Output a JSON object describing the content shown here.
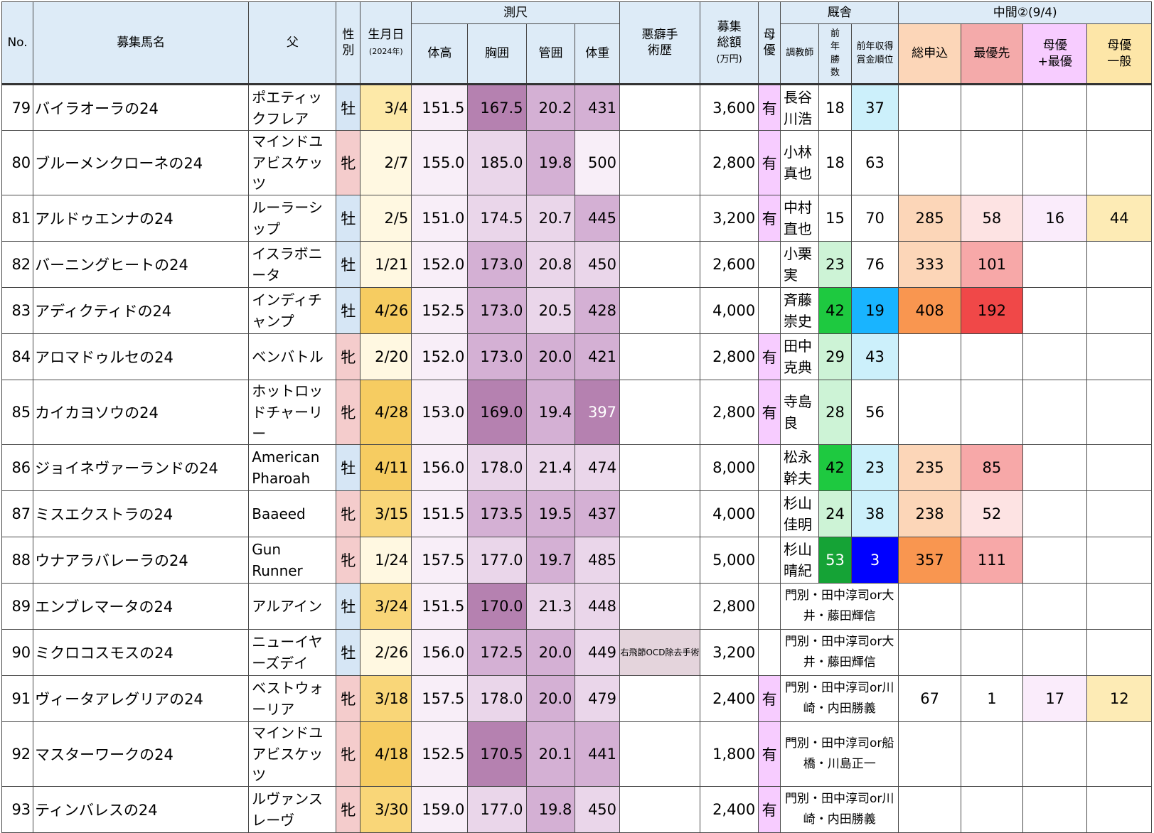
{
  "header": {
    "no": "No.",
    "name": "募集馬名",
    "sire": "父",
    "sex": "性別",
    "birth": "生月日",
    "birth_sub": "(2024年)",
    "measure": "測尺",
    "height": "体高",
    "girth": "胸囲",
    "cannon": "管囲",
    "weight": "体重",
    "vice": "悪癖手術歴",
    "price": "募集総額",
    "price_sub": "(万円)",
    "dam_pref": "母優",
    "stable": "厩舎",
    "trainer": "調教師",
    "wins": "前年勝数",
    "rank": "前年収得賞金順位",
    "interim": "中間②(9/4)",
    "total": "総申込",
    "priority": "最優先",
    "dam_priority": "母優+最優",
    "dam_general": "母優一般"
  },
  "rows": [
    {
      "no": "79",
      "name": "バイラオーラの24",
      "sire": "ポエティックフレア",
      "sex": "牡",
      "birth": "3/4",
      "height": "151.5",
      "girth": "167.5",
      "cannon": "20.2",
      "weight": "431",
      "vice": "",
      "price": "3,600",
      "dam": "有",
      "trainer": "長谷川浩",
      "wins": "18",
      "rank": "37",
      "total": "",
      "priority": "",
      "dam_priority": "",
      "dam_general": ""
    },
    {
      "no": "80",
      "name": "ブルーメンクローネの24",
      "sire": "マインドユアビスケッツ",
      "sex": "牝",
      "birth": "2/7",
      "height": "155.0",
      "girth": "185.0",
      "cannon": "19.8",
      "weight": "500",
      "vice": "",
      "price": "2,800",
      "dam": "有",
      "trainer": "小林真也",
      "wins": "18",
      "rank": "63",
      "total": "",
      "priority": "",
      "dam_priority": "",
      "dam_general": ""
    },
    {
      "no": "81",
      "name": "アルドゥエンナの24",
      "sire": "ルーラーシップ",
      "sex": "牡",
      "birth": "2/5",
      "height": "151.0",
      "girth": "174.5",
      "cannon": "20.7",
      "weight": "445",
      "vice": "",
      "price": "3,200",
      "dam": "有",
      "trainer": "中村直也",
      "wins": "15",
      "rank": "70",
      "total": "285",
      "priority": "58",
      "dam_priority": "16",
      "dam_general": "44"
    },
    {
      "no": "82",
      "name": "バーニングヒートの24",
      "sire": "イスラボニータ",
      "sex": "牡",
      "birth": "1/21",
      "height": "152.0",
      "girth": "173.0",
      "cannon": "20.8",
      "weight": "450",
      "vice": "",
      "price": "2,600",
      "dam": "",
      "trainer": "小栗実",
      "wins": "23",
      "rank": "76",
      "total": "333",
      "priority": "101",
      "dam_priority": "",
      "dam_general": ""
    },
    {
      "no": "83",
      "name": "アディクティドの24",
      "sire": "インディチャンプ",
      "sex": "牡",
      "birth": "4/26",
      "height": "152.5",
      "girth": "173.0",
      "cannon": "20.5",
      "weight": "428",
      "vice": "",
      "price": "4,000",
      "dam": "",
      "trainer": "斉藤崇史",
      "wins": "42",
      "rank": "19",
      "total": "408",
      "priority": "192",
      "dam_priority": "",
      "dam_general": ""
    },
    {
      "no": "84",
      "name": "アロマドゥルセの24",
      "sire": "ベンバトル",
      "sex": "牝",
      "birth": "2/20",
      "height": "152.0",
      "girth": "173.0",
      "cannon": "20.0",
      "weight": "421",
      "vice": "",
      "price": "2,800",
      "dam": "有",
      "trainer": "田中克典",
      "wins": "29",
      "rank": "43",
      "total": "",
      "priority": "",
      "dam_priority": "",
      "dam_general": ""
    },
    {
      "no": "85",
      "name": "カイカヨソウの24",
      "sire": "ホットロッドチャーリー",
      "sex": "牝",
      "birth": "4/28",
      "height": "153.0",
      "girth": "169.0",
      "cannon": "19.4",
      "weight": "397",
      "vice": "",
      "price": "2,800",
      "dam": "有",
      "trainer": "寺島良",
      "wins": "28",
      "rank": "56",
      "total": "",
      "priority": "",
      "dam_priority": "",
      "dam_general": ""
    },
    {
      "no": "86",
      "name": "ジョイネヴァーランドの24",
      "sire": "American Pharoah",
      "sex": "牡",
      "birth": "4/11",
      "height": "156.0",
      "girth": "178.0",
      "cannon": "21.4",
      "weight": "474",
      "vice": "",
      "price": "8,000",
      "dam": "",
      "trainer": "松永幹夫",
      "wins": "42",
      "rank": "23",
      "total": "235",
      "priority": "85",
      "dam_priority": "",
      "dam_general": ""
    },
    {
      "no": "87",
      "name": "ミスエクストラの24",
      "sire": "Baaeed",
      "sex": "牝",
      "birth": "3/15",
      "height": "151.5",
      "girth": "173.5",
      "cannon": "19.5",
      "weight": "437",
      "vice": "",
      "price": "4,000",
      "dam": "",
      "trainer": "杉山佳明",
      "wins": "24",
      "rank": "38",
      "total": "238",
      "priority": "52",
      "dam_priority": "",
      "dam_general": ""
    },
    {
      "no": "88",
      "name": "ウナアラバレーラの24",
      "sire": "Gun Runner",
      "sex": "牝",
      "birth": "1/24",
      "height": "157.5",
      "girth": "177.0",
      "cannon": "19.7",
      "weight": "485",
      "vice": "",
      "price": "5,000",
      "dam": "",
      "trainer": "杉山晴紀",
      "wins": "53",
      "rank": "3",
      "total": "357",
      "priority": "111",
      "dam_priority": "",
      "dam_general": ""
    },
    {
      "no": "89",
      "name": "エンブレマータの24",
      "sire": "アルアイン",
      "sex": "牡",
      "birth": "3/24",
      "height": "151.5",
      "girth": "170.0",
      "cannon": "21.3",
      "weight": "448",
      "vice": "",
      "price": "2,800",
      "dam": "",
      "combined": "門別・田中淳司or大井・藤田輝信",
      "total": "",
      "priority": "",
      "dam_priority": "",
      "dam_general": ""
    },
    {
      "no": "90",
      "name": "ミクロコスモスの24",
      "sire": "ニューイヤーズデイ",
      "sex": "牡",
      "birth": "2/26",
      "height": "156.0",
      "girth": "172.5",
      "cannon": "20.0",
      "weight": "449",
      "vice": "右飛節OCD除去手術",
      "price": "3,200",
      "dam": "",
      "combined": "門別・田中淳司or大井・藤田輝信",
      "total": "",
      "priority": "",
      "dam_priority": "",
      "dam_general": ""
    },
    {
      "no": "91",
      "name": "ヴィータアレグリアの24",
      "sire": "ベストウォーリア",
      "sex": "牝",
      "birth": "3/18",
      "height": "157.5",
      "girth": "178.0",
      "cannon": "20.0",
      "weight": "479",
      "vice": "",
      "price": "2,400",
      "dam": "有",
      "combined": "門別・田中淳司or川崎・内田勝義",
      "total": "67",
      "priority": "1",
      "dam_priority": "17",
      "dam_general": "12"
    },
    {
      "no": "92",
      "name": "マスターワークの24",
      "sire": "マインドユアビスケッツ",
      "sex": "牝",
      "birth": "4/18",
      "height": "152.5",
      "girth": "170.5",
      "cannon": "20.1",
      "weight": "441",
      "vice": "",
      "price": "1,800",
      "dam": "有",
      "combined": "門別・田中淳司or船橋・川島正一",
      "total": "",
      "priority": "",
      "dam_priority": "",
      "dam_general": ""
    },
    {
      "no": "93",
      "name": "ティンバレスの24",
      "sire": "ルヴァンスレーヴ",
      "sex": "牝",
      "birth": "3/30",
      "height": "159.0",
      "girth": "177.0",
      "cannon": "19.8",
      "weight": "450",
      "vice": "",
      "price": "2,400",
      "dam": "有",
      "combined": "門別・田中淳司or川崎・内田勝義",
      "total": "",
      "priority": "",
      "dam_priority": "",
      "dam_general": ""
    }
  ],
  "colors": {
    "sex_male": "#d6e6f5",
    "sex_female": "#f4cccc",
    "dam_yes": "#f7ccff",
    "vice_bg": "#e4d4dc",
    "birth_scale": [
      "#fff8e1",
      "#fde9a8",
      "#f9d678",
      "#f6cc61"
    ],
    "measure_scale": [
      "#f8eef8",
      "#ead6ea",
      "#d4b0d4",
      "#b581b0"
    ],
    "wins_scale": [
      "#ffffff",
      "#cdf3d6",
      "#1ec940",
      "#15a336"
    ],
    "rank_scale": [
      "#ffffff",
      "#ccf0fb",
      "#19b4ff",
      "#0000ff"
    ],
    "total_scale": [
      "#fcd6b8",
      "#f99650"
    ],
    "priority_scale": [
      "#fde3e3",
      "#f04848"
    ],
    "dam_priority_bg": "#faecfb",
    "dam_general_bg": "#fdebb5"
  }
}
